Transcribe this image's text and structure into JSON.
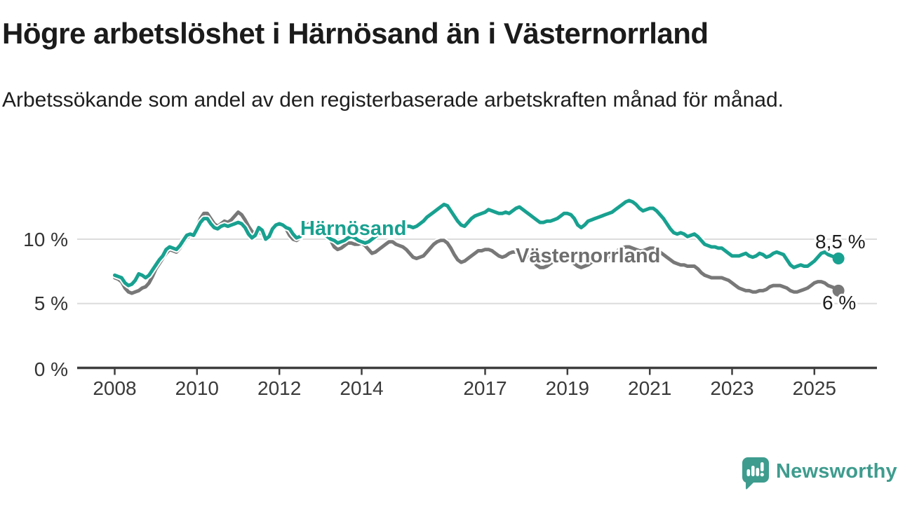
{
  "header": {
    "title": "Högre arbetslöshet i Härnösand än i Västernorrland",
    "subtitle": "Arbetssökande som andel av den registerbaserade arbetskraften månad för månad."
  },
  "footer": {
    "brand": "Newsworthy"
  },
  "colors": {
    "teal": "#18a190",
    "gray": "#787878",
    "teal_label": "#18a190",
    "gray_label": "#6e6e6e",
    "grid": "#dcdcdc",
    "axis": "#3f3f3f",
    "logo_teal": "#3e9c8e",
    "end_label_text": "#1d1d1d"
  },
  "chart_data": {
    "type": "line",
    "unit": "%",
    "frequency": "monthly",
    "x_start": "2008-01",
    "x_end": "2025-08",
    "ylim": [
      0,
      13.8
    ],
    "grid": "horizontal",
    "legend_position": "inline-labels",
    "y_ticks": [
      {
        "label": "10 %",
        "value": 10
      },
      {
        "label": "5 %",
        "value": 5
      },
      {
        "label": "0 %",
        "value": 0
      }
    ],
    "x_ticks": [
      {
        "label": "2008",
        "year": 2008
      },
      {
        "label": "2010",
        "year": 2010
      },
      {
        "label": "2012",
        "year": 2012
      },
      {
        "label": "2014",
        "year": 2014
      },
      {
        "label": "2017",
        "year": 2017
      },
      {
        "label": "2019",
        "year": 2019
      },
      {
        "label": "2021",
        "year": 2021
      },
      {
        "label": "2023",
        "year": 2023
      },
      {
        "label": "2025",
        "year": 2025
      }
    ],
    "series": [
      {
        "name": "Härnösand",
        "color": "#18a190",
        "end_label": "8,5 %",
        "end_value": 8.5,
        "values": [
          7.2,
          7.1,
          7.0,
          6.6,
          6.4,
          6.5,
          6.8,
          7.3,
          7.2,
          7.0,
          7.2,
          7.6,
          8.0,
          8.4,
          8.7,
          9.2,
          9.4,
          9.3,
          9.2,
          9.5,
          9.9,
          10.3,
          10.4,
          10.3,
          10.8,
          11.3,
          11.6,
          11.6,
          11.2,
          10.9,
          10.8,
          11.0,
          11.1,
          11.0,
          11.1,
          11.2,
          11.3,
          11.2,
          10.9,
          10.4,
          10.1,
          10.3,
          10.9,
          10.7,
          10.0,
          10.2,
          10.8,
          11.1,
          11.2,
          11.1,
          10.9,
          10.8,
          10.4,
          10.1,
          10.2,
          10.5,
          10.9,
          11.0,
          10.8,
          10.7,
          10.6,
          10.4,
          10.2,
          10.0,
          9.9,
          9.7,
          9.8,
          9.9,
          10.1,
          10.2,
          10.1,
          9.9,
          9.8,
          9.7,
          9.8,
          10.0,
          10.2,
          10.4,
          10.5,
          10.6,
          10.7,
          10.8,
          10.8,
          10.9,
          10.9,
          11.0,
          11.0,
          10.9,
          11.0,
          11.2,
          11.4,
          11.7,
          11.9,
          12.1,
          12.3,
          12.5,
          12.7,
          12.6,
          12.2,
          11.8,
          11.4,
          11.1,
          11.0,
          11.3,
          11.6,
          11.8,
          11.9,
          12.0,
          12.1,
          12.3,
          12.2,
          12.1,
          12.0,
          12.0,
          12.1,
          12.0,
          12.2,
          12.4,
          12.5,
          12.3,
          12.1,
          11.9,
          11.7,
          11.5,
          11.3,
          11.3,
          11.4,
          11.4,
          11.5,
          11.6,
          11.8,
          12.0,
          12.0,
          11.9,
          11.6,
          11.1,
          10.9,
          11.1,
          11.4,
          11.5,
          11.6,
          11.7,
          11.8,
          11.9,
          12.0,
          12.1,
          12.3,
          12.5,
          12.7,
          12.9,
          13.0,
          12.9,
          12.7,
          12.4,
          12.2,
          12.3,
          12.4,
          12.4,
          12.2,
          11.9,
          11.6,
          11.2,
          10.8,
          10.5,
          10.4,
          10.5,
          10.4,
          10.2,
          10.3,
          10.4,
          10.2,
          9.9,
          9.6,
          9.5,
          9.4,
          9.4,
          9.3,
          9.3,
          9.1,
          8.9,
          8.7,
          8.7,
          8.7,
          8.8,
          8.9,
          8.7,
          8.6,
          8.7,
          8.9,
          8.8,
          8.6,
          8.7,
          8.9,
          9.0,
          8.9,
          8.8,
          8.4,
          8.0,
          7.8,
          7.9,
          8.0,
          7.9,
          7.9,
          8.1,
          8.3,
          8.6,
          8.9,
          9.0,
          8.8,
          8.7,
          8.6,
          8.5
        ]
      },
      {
        "name": "Västernorrland",
        "color": "#787878",
        "end_label": "6 %",
        "end_value": 6.0,
        "values": [
          7.0,
          6.9,
          6.7,
          6.2,
          5.9,
          5.8,
          5.9,
          6.0,
          6.2,
          6.3,
          6.6,
          7.1,
          7.7,
          8.1,
          8.5,
          8.9,
          9.2,
          9.1,
          9.0,
          9.3,
          9.7,
          10.1,
          10.3,
          10.4,
          11.0,
          11.6,
          12.0,
          12.0,
          11.6,
          11.2,
          11.0,
          11.2,
          11.4,
          11.3,
          11.5,
          11.8,
          12.1,
          11.9,
          11.5,
          11.0,
          10.6,
          10.4,
          10.6,
          10.4,
          10.1,
          10.3,
          10.7,
          11.0,
          11.1,
          11.0,
          10.8,
          10.3,
          10.0,
          9.9,
          10.1,
          10.5,
          11.0,
          11.3,
          11.2,
          11.0,
          10.8,
          10.6,
          10.3,
          9.9,
          9.4,
          9.2,
          9.3,
          9.5,
          9.7,
          9.7,
          9.6,
          9.6,
          9.7,
          9.5,
          9.2,
          8.9,
          9.0,
          9.2,
          9.4,
          9.6,
          9.8,
          9.8,
          9.6,
          9.5,
          9.4,
          9.2,
          8.9,
          8.6,
          8.5,
          8.6,
          8.7,
          9.0,
          9.3,
          9.6,
          9.8,
          9.9,
          9.9,
          9.7,
          9.3,
          8.8,
          8.4,
          8.2,
          8.3,
          8.5,
          8.7,
          8.9,
          9.1,
          9.1,
          9.2,
          9.2,
          9.1,
          8.9,
          8.7,
          8.6,
          8.7,
          8.9,
          9.0,
          9.0,
          8.9,
          8.8,
          8.7,
          8.5,
          8.3,
          8.0,
          7.8,
          7.8,
          7.9,
          8.1,
          8.3,
          8.4,
          8.5,
          8.5,
          8.4,
          8.3,
          8.1,
          7.9,
          7.8,
          7.9,
          8.0,
          8.2,
          8.3,
          8.4,
          8.5,
          8.5,
          8.6,
          8.7,
          8.9,
          9.2,
          9.3,
          9.4,
          9.4,
          9.3,
          9.2,
          9.1,
          9.1,
          9.2,
          9.3,
          9.3,
          9.2,
          9.0,
          8.8,
          8.6,
          8.4,
          8.2,
          8.1,
          8.0,
          8.0,
          7.9,
          7.9,
          7.9,
          7.7,
          7.4,
          7.2,
          7.1,
          7.0,
          7.0,
          7.0,
          7.0,
          6.9,
          6.8,
          6.6,
          6.4,
          6.2,
          6.1,
          6.0,
          6.0,
          5.9,
          5.9,
          6.0,
          6.0,
          6.1,
          6.3,
          6.4,
          6.4,
          6.4,
          6.3,
          6.2,
          6.0,
          5.9,
          5.9,
          6.0,
          6.1,
          6.2,
          6.4,
          6.6,
          6.7,
          6.7,
          6.6,
          6.4,
          6.3,
          6.2,
          6.0
        ]
      }
    ]
  }
}
